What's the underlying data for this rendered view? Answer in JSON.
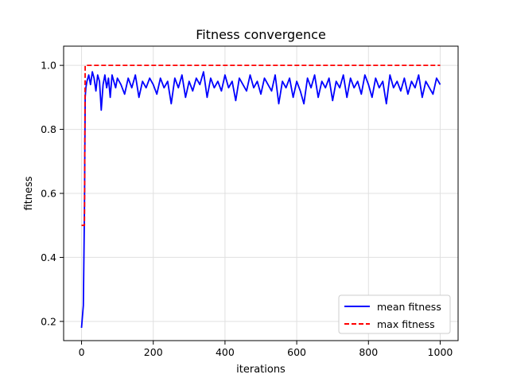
{
  "chart_data": {
    "type": "line",
    "title": "Fitness convergence",
    "xlabel": "iterations",
    "ylabel": "fitness",
    "xlim": [
      -50,
      1050
    ],
    "ylim": [
      0.14,
      1.06
    ],
    "xticks": [
      0,
      200,
      400,
      600,
      800,
      1000
    ],
    "yticks": [
      0.2,
      0.4,
      0.6,
      0.8,
      1.0
    ],
    "xtick_labels": [
      "0",
      "200",
      "400",
      "600",
      "800",
      "1000"
    ],
    "ytick_labels": [
      "0.2",
      "0.4",
      "0.6",
      "0.8",
      "1.0"
    ],
    "grid": true,
    "legend_position": "lower-right",
    "series": [
      {
        "name": "mean fitness",
        "color": "#0000ff",
        "style": "solid",
        "x": [
          0,
          5,
          8,
          10,
          12,
          15,
          20,
          25,
          30,
          35,
          40,
          45,
          50,
          55,
          60,
          65,
          70,
          75,
          80,
          85,
          90,
          95,
          100,
          110,
          120,
          130,
          140,
          150,
          160,
          170,
          180,
          190,
          200,
          210,
          220,
          230,
          240,
          250,
          260,
          270,
          280,
          290,
          300,
          310,
          320,
          330,
          340,
          350,
          360,
          370,
          380,
          390,
          400,
          410,
          420,
          430,
          440,
          450,
          460,
          470,
          480,
          490,
          500,
          510,
          520,
          530,
          540,
          550,
          560,
          570,
          580,
          590,
          600,
          610,
          620,
          630,
          640,
          650,
          660,
          670,
          680,
          690,
          700,
          710,
          720,
          730,
          740,
          750,
          760,
          770,
          780,
          790,
          800,
          810,
          820,
          830,
          840,
          850,
          860,
          870,
          880,
          890,
          900,
          910,
          920,
          930,
          940,
          950,
          960,
          970,
          980,
          990,
          1000
        ],
        "values": [
          0.18,
          0.25,
          0.55,
          0.9,
          0.93,
          0.95,
          0.97,
          0.94,
          0.98,
          0.96,
          0.92,
          0.97,
          0.95,
          0.86,
          0.94,
          0.97,
          0.93,
          0.96,
          0.9,
          0.97,
          0.95,
          0.93,
          0.96,
          0.94,
          0.91,
          0.96,
          0.93,
          0.97,
          0.9,
          0.95,
          0.93,
          0.96,
          0.94,
          0.91,
          0.96,
          0.93,
          0.95,
          0.88,
          0.96,
          0.93,
          0.97,
          0.9,
          0.95,
          0.92,
          0.96,
          0.94,
          0.98,
          0.9,
          0.96,
          0.93,
          0.95,
          0.92,
          0.97,
          0.93,
          0.95,
          0.89,
          0.96,
          0.94,
          0.92,
          0.97,
          0.93,
          0.95,
          0.91,
          0.96,
          0.94,
          0.92,
          0.97,
          0.88,
          0.95,
          0.93,
          0.96,
          0.9,
          0.95,
          0.92,
          0.88,
          0.96,
          0.93,
          0.97,
          0.9,
          0.95,
          0.93,
          0.96,
          0.89,
          0.95,
          0.93,
          0.97,
          0.9,
          0.96,
          0.93,
          0.95,
          0.91,
          0.97,
          0.94,
          0.9,
          0.96,
          0.93,
          0.95,
          0.88,
          0.97,
          0.93,
          0.95,
          0.92,
          0.96,
          0.91,
          0.95,
          0.93,
          0.97,
          0.9,
          0.95,
          0.93,
          0.91,
          0.96,
          0.94
        ]
      },
      {
        "name": "max fitness",
        "color": "#ff0000",
        "style": "dashed",
        "x": [
          0,
          8,
          10,
          1000
        ],
        "values": [
          0.5,
          0.5,
          1.0,
          1.0
        ]
      }
    ]
  }
}
